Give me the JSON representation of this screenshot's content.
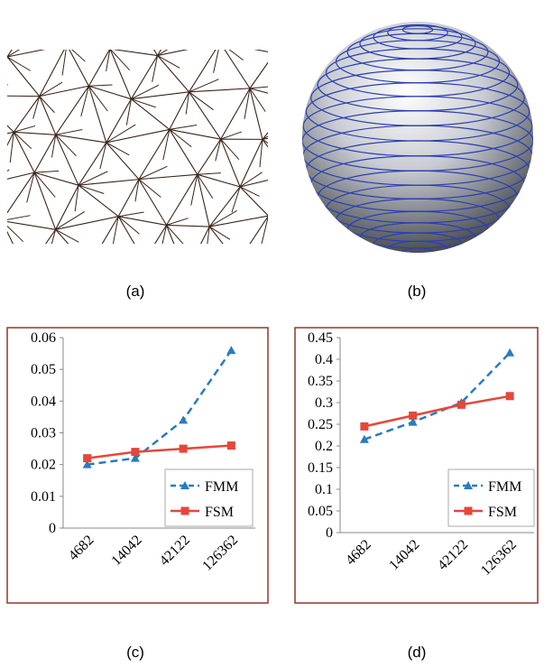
{
  "panels": [
    "(a)",
    "(b)",
    "(c)",
    "(d)"
  ],
  "chart_data": [
    {
      "type": "line",
      "categories": [
        "4682",
        "14042",
        "42122",
        "126362"
      ],
      "series": [
        {
          "name": "FMM",
          "color": "#2a7bc0",
          "marker": "triangle",
          "dashed": true,
          "values": [
            0.02,
            0.022,
            0.034,
            0.056
          ]
        },
        {
          "name": "FSM",
          "color": "#e5473a",
          "marker": "square",
          "dashed": false,
          "values": [
            0.022,
            0.024,
            0.025,
            0.026
          ]
        }
      ],
      "ylim": [
        0,
        0.06
      ],
      "yticks": [
        0,
        0.01,
        0.02,
        0.03,
        0.04,
        0.05,
        0.06
      ],
      "grid": false,
      "legend": "lower right"
    },
    {
      "type": "line",
      "categories": [
        "4682",
        "14042",
        "42122",
        "126362"
      ],
      "series": [
        {
          "name": "FMM",
          "color": "#2a7bc0",
          "marker": "triangle",
          "dashed": true,
          "values": [
            0.215,
            0.255,
            0.3,
            0.415
          ]
        },
        {
          "name": "FSM",
          "color": "#e5473a",
          "marker": "square",
          "dashed": false,
          "values": [
            0.245,
            0.27,
            0.295,
            0.315
          ]
        }
      ],
      "ylim": [
        0,
        0.45
      ],
      "yticks": [
        0,
        0.05,
        0.1,
        0.15,
        0.2,
        0.25,
        0.3,
        0.35,
        0.4,
        0.45
      ],
      "grid": false,
      "legend": "lower right"
    }
  ]
}
